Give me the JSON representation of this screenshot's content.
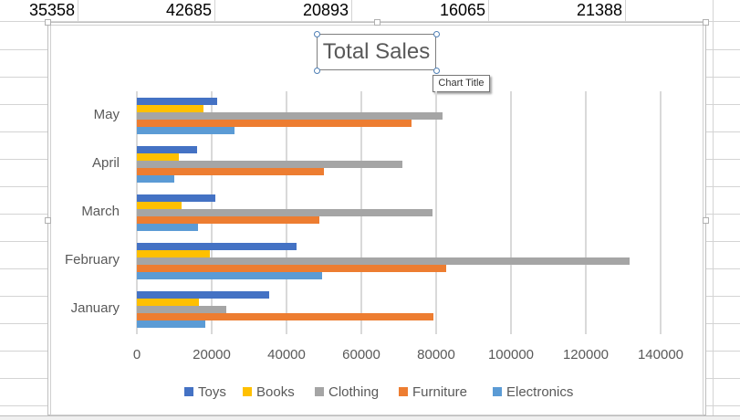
{
  "spreadsheet": {
    "top_row_values": [
      "35358",
      "42685",
      "20893",
      "16065",
      "21388"
    ]
  },
  "chart": {
    "title": "Total Sales",
    "tooltip": "Chart Title"
  },
  "colors": {
    "Toys": "#4472c4",
    "Books": "#ffc000",
    "Clothing": "#a5a5a5",
    "Furniture": "#ed7d31",
    "Electronics": "#5b9bd5",
    "gridline": "#d9d9d9",
    "text": "#595959"
  },
  "legend": [
    "Toys",
    "Books",
    "Clothing",
    "Furniture",
    "Electronics"
  ],
  "chart_data": {
    "type": "bar",
    "orientation": "horizontal",
    "title": "Total Sales",
    "xlabel": "",
    "ylabel": "",
    "categories": [
      "January",
      "February",
      "March",
      "April",
      "May"
    ],
    "series": [
      {
        "name": "Toys",
        "values": [
          35358,
          42685,
          20893,
          16065,
          21388
        ]
      },
      {
        "name": "Books",
        "values": [
          16500,
          19600,
          12000,
          11300,
          17700
        ]
      },
      {
        "name": "Clothing",
        "values": [
          24000,
          131800,
          79000,
          71000,
          81700
        ]
      },
      {
        "name": "Furniture",
        "values": [
          79200,
          82600,
          48900,
          50000,
          73500
        ]
      },
      {
        "name": "Electronics",
        "values": [
          18400,
          49400,
          16400,
          10000,
          26000
        ]
      }
    ],
    "xlim": [
      0,
      140000
    ],
    "xticks": [
      0,
      20000,
      40000,
      60000,
      80000,
      100000,
      120000,
      140000
    ],
    "tick_labels": [
      "0",
      "20000",
      "40000",
      "60000",
      "80000",
      "100000",
      "120000",
      "140000"
    ],
    "grid": "vertical",
    "legend_position": "bottom"
  }
}
